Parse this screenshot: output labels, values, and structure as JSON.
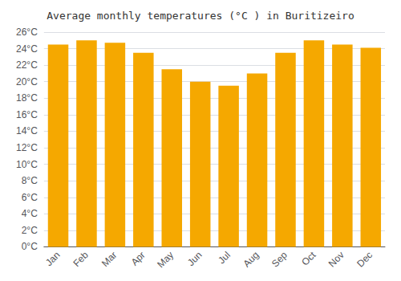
{
  "chart_data": {
    "type": "bar",
    "title": "Average monthly temperatures (°C ) in Buritizeiro",
    "categories": [
      "Jan",
      "Feb",
      "Mar",
      "Apr",
      "May",
      "Jun",
      "Jul",
      "Aug",
      "Sep",
      "Oct",
      "Nov",
      "Dec"
    ],
    "values": [
      24.5,
      25.0,
      24.7,
      23.5,
      21.5,
      20.0,
      19.5,
      21.0,
      23.5,
      25.0,
      24.5,
      24.1
    ],
    "color": "#F5A800",
    "ylim": [
      0,
      26
    ],
    "yticks": [
      {
        "value": 0,
        "label": "0°C"
      },
      {
        "value": 2,
        "label": "2°C"
      },
      {
        "value": 4,
        "label": "4°C"
      },
      {
        "value": 6,
        "label": "6°C"
      },
      {
        "value": 8,
        "label": "8°C"
      },
      {
        "value": 10,
        "label": "10°C"
      },
      {
        "value": 12,
        "label": "12°C"
      },
      {
        "value": 14,
        "label": "14°C"
      },
      {
        "value": 16,
        "label": "16°C"
      },
      {
        "value": 18,
        "label": "18°C"
      },
      {
        "value": 20,
        "label": "20°C"
      },
      {
        "value": 22,
        "label": "22°C"
      },
      {
        "value": 24,
        "label": "24°C"
      },
      {
        "value": 26,
        "label": "26°C"
      }
    ],
    "grid": true
  }
}
